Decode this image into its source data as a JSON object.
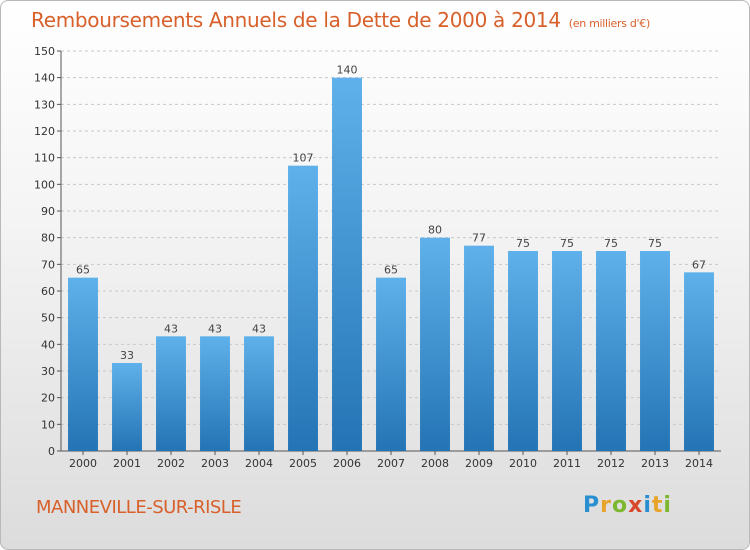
{
  "title": "Remboursements Annuels de la Dette de 2000 à 2014",
  "unit_note": "(en milliers d'€)",
  "commune": "MANNEVILLE-SUR-RISLE",
  "logo_text": "Proxiti",
  "colors": {
    "title": "#d8602a",
    "bar_top": "#5eb1ea",
    "bar_bottom": "#2474b5",
    "grid": "#c8c8c8"
  },
  "chart_data": {
    "type": "bar",
    "title": "Remboursements Annuels de la Dette de 2000 à 2014",
    "xlabel": "",
    "ylabel": "",
    "categories": [
      "2000",
      "2001",
      "2002",
      "2003",
      "2004",
      "2005",
      "2006",
      "2007",
      "2008",
      "2009",
      "2010",
      "2011",
      "2012",
      "2013",
      "2014"
    ],
    "values": [
      65,
      33,
      43,
      43,
      43,
      107,
      140,
      65,
      80,
      77,
      75,
      75,
      75,
      75,
      67
    ],
    "ylim": [
      0,
      150
    ],
    "yticks": [
      0,
      10,
      20,
      30,
      40,
      50,
      60,
      70,
      80,
      90,
      100,
      110,
      120,
      130,
      140,
      150
    ],
    "grid": true,
    "data_labels": true
  }
}
